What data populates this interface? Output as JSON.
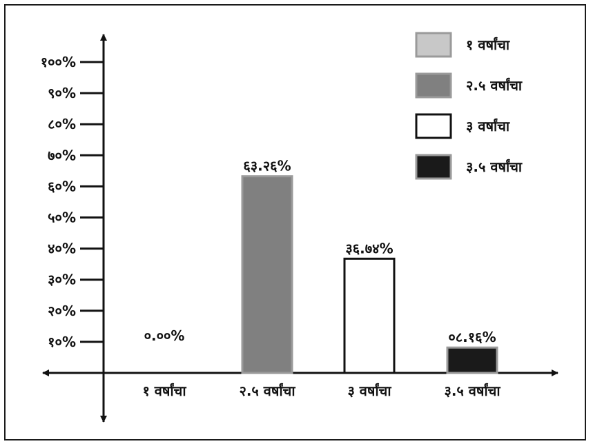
{
  "chart_data": {
    "type": "bar",
    "categories": [
      "१ वर्षांचा",
      "२.५ वर्षांचा",
      "३ वर्षांचा",
      "३.५ वर्षांचा"
    ],
    "values": [
      0.0,
      63.26,
      36.74,
      8.16
    ],
    "data_labels": [
      "०.००%",
      "६३.२६%",
      "३६.७४%",
      "०८.१६%"
    ],
    "yticks": [
      10,
      20,
      30,
      40,
      50,
      60,
      70,
      80,
      90,
      100
    ],
    "ytick_labels": [
      "१०%",
      "२०%",
      "३०%",
      "४०%",
      "५०%",
      "६०%",
      "७०%",
      "८०%",
      "९०%",
      "१००%"
    ],
    "ylim": [
      0,
      100
    ],
    "legend": {
      "placement": "top-right",
      "entries": [
        "१ वर्षांचा",
        "२.५ वर्षांचा",
        "३ वर्षांचा",
        "३.५ वर्षांचा"
      ]
    },
    "colors": [
      "#c8c8c8",
      "#808080",
      "#ffffff",
      "#1a1a1a"
    ],
    "bar_stroke": "#9a9a9a",
    "title": "",
    "xlabel": "",
    "ylabel": "",
    "grid": false
  }
}
